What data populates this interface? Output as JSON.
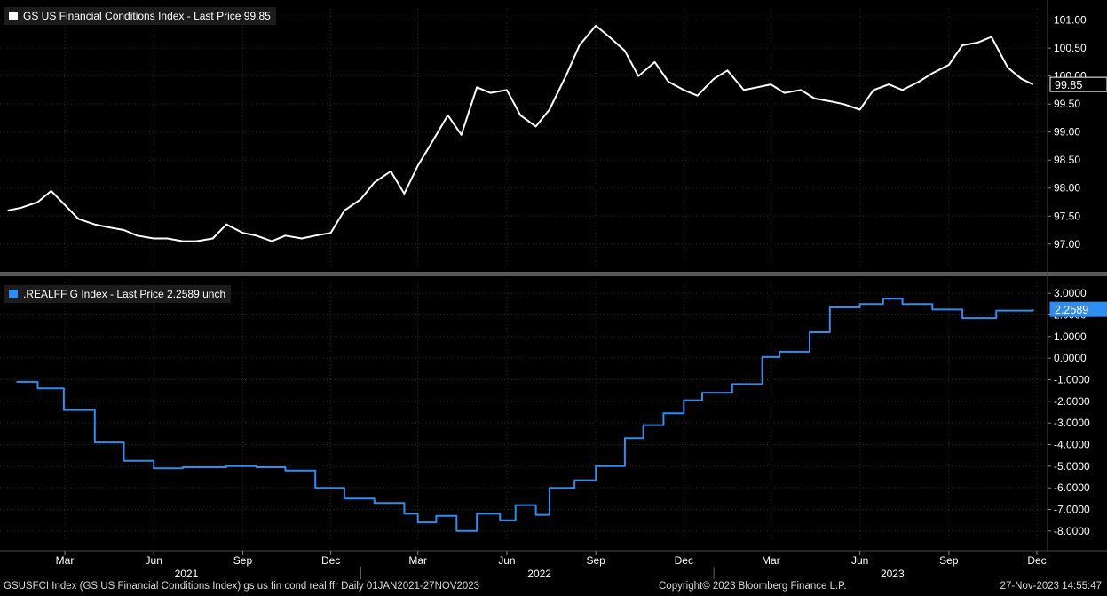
{
  "colors": {
    "background": "#000000",
    "panel_divider": "#5a5a5a",
    "series1": "#ffffff",
    "series2": "#2f8cf0",
    "grid": "#2a2a2a"
  },
  "chart_data": [
    {
      "type": "line",
      "legend": "GS US Financial Conditions Index - Last Price 99.85",
      "last_value_label": "99.85",
      "ylim": [
        96.6,
        101.2
      ],
      "yticks": [
        "97.00",
        "97.50",
        "98.00",
        "98.50",
        "99.00",
        "99.50",
        "100.00",
        "100.50",
        "101.00"
      ],
      "series": [
        {
          "name": "GS US Financial Conditions Index",
          "x": [
            "2021-01-01",
            "2021-01-15",
            "2021-02-01",
            "2021-02-15",
            "2021-03-01",
            "2021-03-15",
            "2021-04-01",
            "2021-04-15",
            "2021-05-01",
            "2021-05-15",
            "2021-06-01",
            "2021-06-15",
            "2021-07-01",
            "2021-07-15",
            "2021-08-01",
            "2021-08-15",
            "2021-09-01",
            "2021-09-15",
            "2021-10-01",
            "2021-10-15",
            "2021-11-01",
            "2021-11-15",
            "2021-12-01",
            "2021-12-15",
            "2022-01-01",
            "2022-01-15",
            "2022-02-01",
            "2022-02-15",
            "2022-03-01",
            "2022-03-15",
            "2022-04-01",
            "2022-04-15",
            "2022-05-01",
            "2022-05-15",
            "2022-06-01",
            "2022-06-15",
            "2022-07-01",
            "2022-07-15",
            "2022-08-01",
            "2022-08-15",
            "2022-09-01",
            "2022-09-15",
            "2022-10-01",
            "2022-10-15",
            "2022-11-01",
            "2022-11-15",
            "2022-12-01",
            "2022-12-15",
            "2023-01-01",
            "2023-01-15",
            "2023-02-01",
            "2023-02-15",
            "2023-03-01",
            "2023-03-15",
            "2023-04-01",
            "2023-04-15",
            "2023-05-01",
            "2023-05-15",
            "2023-06-01",
            "2023-06-15",
            "2023-07-01",
            "2023-07-15",
            "2023-08-01",
            "2023-08-15",
            "2023-09-01",
            "2023-09-15",
            "2023-10-01",
            "2023-10-15",
            "2023-11-01",
            "2023-11-15",
            "2023-11-27"
          ],
          "values": [
            97.6,
            97.65,
            97.75,
            97.95,
            97.7,
            97.45,
            97.35,
            97.3,
            97.25,
            97.15,
            97.1,
            97.1,
            97.05,
            97.05,
            97.1,
            97.35,
            97.2,
            97.15,
            97.05,
            97.15,
            97.1,
            97.15,
            97.2,
            97.6,
            97.8,
            98.1,
            98.3,
            97.9,
            98.4,
            98.8,
            99.3,
            98.95,
            99.8,
            99.7,
            99.75,
            99.3,
            99.1,
            99.4,
            100.0,
            100.55,
            100.9,
            100.7,
            100.45,
            100.0,
            100.25,
            99.9,
            99.75,
            99.65,
            99.95,
            100.1,
            99.75,
            99.8,
            99.85,
            99.7,
            99.75,
            99.6,
            99.55,
            99.5,
            99.4,
            99.75,
            99.85,
            99.75,
            99.9,
            100.05,
            100.2,
            100.55,
            100.6,
            100.7,
            100.15,
            99.95,
            99.85
          ]
        }
      ]
    },
    {
      "type": "line",
      "step": true,
      "legend": ".REALFF G Index - Last Price 2.2589  unch",
      "last_value_label": "2.2589",
      "ylim": [
        -8.5,
        3.5
      ],
      "yticks": [
        "-8.0000",
        "-7.0000",
        "-6.0000",
        "-5.0000",
        "-4.0000",
        "-3.0000",
        "-2.0000",
        "-1.0000",
        "0.0000",
        "1.0000",
        "2.0000",
        "3.0000"
      ],
      "series": [
        {
          "name": ".REALFF G Index",
          "x": [
            "2021-01-10",
            "2021-02-01",
            "2021-02-28",
            "2021-04-01",
            "2021-05-01",
            "2021-06-01",
            "2021-07-01",
            "2021-08-15",
            "2021-09-15",
            "2021-10-15",
            "2021-11-15",
            "2021-12-15",
            "2022-01-15",
            "2022-02-15",
            "2022-03-01",
            "2022-03-20",
            "2022-04-10",
            "2022-05-01",
            "2022-05-25",
            "2022-06-10",
            "2022-07-01",
            "2022-07-15",
            "2022-08-10",
            "2022-09-01",
            "2022-10-01",
            "2022-10-20",
            "2022-11-10",
            "2022-12-01",
            "2022-12-20",
            "2023-01-20",
            "2023-02-20",
            "2023-03-10",
            "2023-04-10",
            "2023-05-01",
            "2023-06-01",
            "2023-06-25",
            "2023-07-15",
            "2023-08-15",
            "2023-09-15",
            "2023-10-20",
            "2023-11-27"
          ],
          "values": [
            -1.1,
            -1.4,
            -2.4,
            -3.9,
            -4.75,
            -5.1,
            -5.05,
            -5.0,
            -5.05,
            -5.2,
            -6.0,
            -6.5,
            -6.7,
            -7.2,
            -7.6,
            -7.3,
            -8.0,
            -7.2,
            -7.5,
            -6.8,
            -7.25,
            -6.0,
            -5.65,
            -5.0,
            -3.7,
            -3.1,
            -2.55,
            -1.95,
            -1.6,
            -1.2,
            0.05,
            0.3,
            1.2,
            2.35,
            2.5,
            2.75,
            2.5,
            2.25,
            1.85,
            2.2,
            2.26
          ]
        }
      ]
    }
  ],
  "x_axis": {
    "month_ticks": [
      {
        "label": "Mar",
        "date": "2021-03-01"
      },
      {
        "label": "Jun",
        "date": "2021-06-01"
      },
      {
        "label": "Sep",
        "date": "2021-09-01"
      },
      {
        "label": "Dec",
        "date": "2021-12-01"
      },
      {
        "label": "Mar",
        "date": "2022-03-01"
      },
      {
        "label": "Jun",
        "date": "2022-06-01"
      },
      {
        "label": "Sep",
        "date": "2022-09-01"
      },
      {
        "label": "Dec",
        "date": "2022-12-01"
      },
      {
        "label": "Mar",
        "date": "2023-03-01"
      },
      {
        "label": "Jun",
        "date": "2023-06-01"
      },
      {
        "label": "Sep",
        "date": "2023-09-01"
      },
      {
        "label": "Dec",
        "date": "2023-12-01"
      }
    ],
    "year_labels": [
      {
        "label": "2021",
        "date": "2021-07-01"
      },
      {
        "label": "2022",
        "date": "2022-07-01"
      },
      {
        "label": "2023",
        "date": "2023-07-01"
      }
    ]
  },
  "footer": {
    "left": "GSUSFCI Index (GS US Financial Conditions Index) gs us fin cond real ffr  Daily 01JAN2021-27NOV2023",
    "center": "Copyright© 2023 Bloomberg Finance L.P.",
    "right": "27-Nov-2023 14:55:47"
  }
}
